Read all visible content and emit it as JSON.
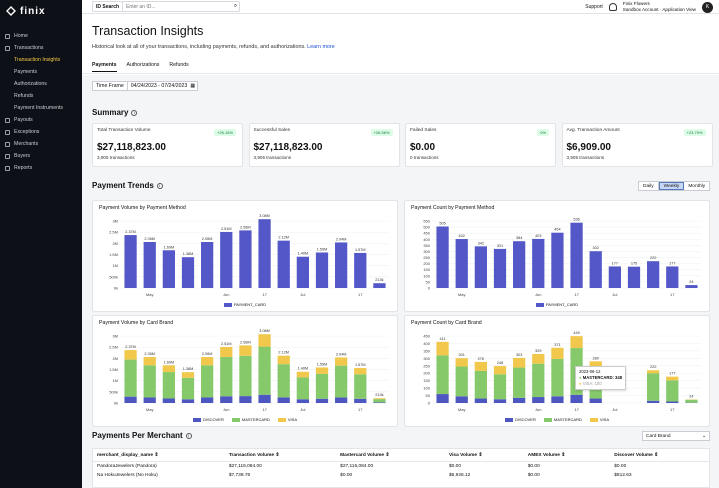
{
  "app": {
    "name": "finix"
  },
  "sidebar": {
    "items": [
      {
        "label": "Home",
        "sub": false
      },
      {
        "label": "Transactions",
        "sub": false
      },
      {
        "label": "Transaction Insights",
        "sub": true,
        "active": true
      },
      {
        "label": "Payments",
        "sub": true
      },
      {
        "label": "Authorizations",
        "sub": true
      },
      {
        "label": "Refunds",
        "sub": true
      },
      {
        "label": "Payment Instruments",
        "sub": true
      },
      {
        "label": "Payouts",
        "sub": false
      },
      {
        "label": "Exceptions",
        "sub": false
      },
      {
        "label": "Merchants",
        "sub": false
      },
      {
        "label": "Buyers",
        "sub": false
      },
      {
        "label": "Reports",
        "sub": false
      }
    ]
  },
  "topbar": {
    "search_label": "ID Search",
    "search_placeholder": "Enter an ID...",
    "support": "Support",
    "user_name": "Finix Flowers",
    "user_account": "Sandbox Account · Application View",
    "avatar_initial": "K"
  },
  "header": {
    "title": "Transaction Insights",
    "subtitle": "Historical look at all of your transactions, including payments, refunds, and authorizations.",
    "learn_more": "Learn more"
  },
  "tabs": [
    "Payments",
    "Authorizations",
    "Refunds"
  ],
  "timeframe": {
    "label": "Time Frame",
    "value": "04/24/2023 - 07/24/2023"
  },
  "summary": {
    "title": "Summary",
    "cards": [
      {
        "label": "Total Transaction Volume",
        "value": "$27,118,823.00",
        "count": "3,905 transactions",
        "badge": "+26.16%"
      },
      {
        "label": "Successful Sales",
        "value": "$27,118,823.00",
        "count": "3,905 transactions",
        "badge": "+26.56%"
      },
      {
        "label": "Failed Sales",
        "value": "$0.00",
        "count": "0 transactions",
        "badge": "0%"
      },
      {
        "label": "Avg. Transaction Amount",
        "value": "$6,909.00",
        "count": "3,905 transactions",
        "badge": "+23.79%"
      }
    ]
  },
  "trends": {
    "title": "Payment Trends",
    "toggle": [
      "Daily",
      "Weekly",
      "Monthly"
    ],
    "selected": "Weekly"
  },
  "colors": {
    "payment_card": "#5357c7",
    "discover": "#4e56c1",
    "mastercard": "#86c96b",
    "visa": "#f1c84b"
  },
  "chart_data": [
    {
      "type": "bar",
      "title": "Payment Volume by Payment Method",
      "x_ticks": [
        "May",
        "Jun",
        "17",
        "Jul",
        "17"
      ],
      "y_ticks": [
        "0k",
        "500k",
        "1M",
        "1.5M",
        "2M",
        "2.5M",
        "3M"
      ],
      "ylim": [
        0,
        3000000
      ],
      "labels": [
        "2.37M",
        "2.06M",
        "1.69M",
        "1.38M",
        "2.06M",
        "2.51M",
        "2.58M",
        "3.08M",
        "2.12M",
        "1.40M",
        "1.59M",
        "2.04M",
        "1.57M",
        "213k"
      ],
      "values": [
        2370000,
        2060000,
        1690000,
        1380000,
        2060000,
        2510000,
        2580000,
        3080000,
        2120000,
        1400000,
        1590000,
        2040000,
        1570000,
        213000
      ],
      "series": [
        {
          "name": "PAYMENT_CARD"
        }
      ]
    },
    {
      "type": "bar",
      "title": "Payment Count by Payment Method",
      "x_ticks": [
        "May",
        "Jun",
        "17",
        "Jul",
        "17"
      ],
      "y_ticks": [
        "0",
        "50",
        "100",
        "150",
        "200",
        "250",
        "300",
        "350",
        "400",
        "450",
        "500",
        "550"
      ],
      "ylim": [
        0,
        550
      ],
      "values": [
        505,
        402,
        342,
        321,
        384,
        403,
        454,
        536,
        302,
        177,
        175,
        220,
        177,
        24
      ],
      "series": [
        {
          "name": "PAYMENT_CARD"
        }
      ]
    },
    {
      "type": "bar",
      "title": "Payment Volume by Card Brand",
      "x_ticks": [
        "May",
        "Jun",
        "17",
        "Jul",
        "17"
      ],
      "y_ticks": [
        "0k",
        "500k",
        "1M",
        "1.5M",
        "2M",
        "2.5M",
        "3M"
      ],
      "ylim": [
        0,
        3000000
      ],
      "labels": [
        "2.37M",
        "2.06M",
        "1.69M",
        "1.38M",
        "2.06M",
        "2.51M",
        "2.58M",
        "3.08M",
        "2.12M",
        "1.40M",
        "1.59M",
        "2.04M",
        "1.57M",
        "213k"
      ],
      "values": [
        2370000,
        2060000,
        1690000,
        1380000,
        2060000,
        2510000,
        2580000,
        3080000,
        2120000,
        1400000,
        1590000,
        2040000,
        1570000,
        213000
      ],
      "series": [
        {
          "name": "DISCOVER"
        },
        {
          "name": "MASTERCARD"
        },
        {
          "name": "VISA"
        }
      ]
    },
    {
      "type": "bar",
      "title": "Payment Count by Card Brand",
      "x_ticks": [
        "May",
        "Jun",
        "17",
        "Jul",
        "17"
      ],
      "y_ticks": [
        "0",
        "50",
        "100",
        "150",
        "200",
        "250",
        "300",
        "350",
        "400",
        "450"
      ],
      "ylim": [
        0,
        450
      ],
      "labels": [
        "411",
        "301",
        "276",
        "248",
        "303",
        "329",
        "371",
        "449",
        "280",
        "",
        "",
        "220",
        "177",
        "24"
      ],
      "series": [
        {
          "name": "DISCOVER",
          "values": [
            60,
            45,
            30,
            25,
            35,
            40,
            45,
            55,
            30,
            0,
            0,
            15,
            10,
            2
          ]
        },
        {
          "name": "MASTERCARD",
          "values": [
            260,
            200,
            186,
            168,
            203,
            224,
            251,
            314,
            195,
            0,
            0,
            185,
            142,
            20
          ]
        },
        {
          "name": "VISA",
          "values": [
            91,
            56,
            60,
            55,
            65,
            65,
            75,
            80,
            55,
            0,
            0,
            20,
            25,
            2
          ]
        }
      ],
      "tooltip": {
        "date": "2023-06-12",
        "mastercard": "MASTERCARD: 348",
        "visa": "VISA: 100"
      }
    }
  ],
  "merchants": {
    "title": "Payments Per Merchant",
    "dropdown": "Card Brand",
    "columns": [
      "merchant_display_name ⇕",
      "Transaction Volume ⇕",
      "Mastercard Volume ⇕",
      "Visa Volume ⇕",
      "AMEX Volume ⇕",
      "Discover Volume ⇕"
    ],
    "rows": [
      [
        "PandoraJewelers (Pandora)",
        "$27,116,084.00",
        "$27,116,084.00",
        "$0.00",
        "$0.00",
        "$0.00"
      ],
      [
        "Na HokuJewelers (No Hoku)",
        "$7,738.76",
        "$0.00",
        "$6,926.12",
        "$0.00",
        "$812.63"
      ]
    ]
  }
}
